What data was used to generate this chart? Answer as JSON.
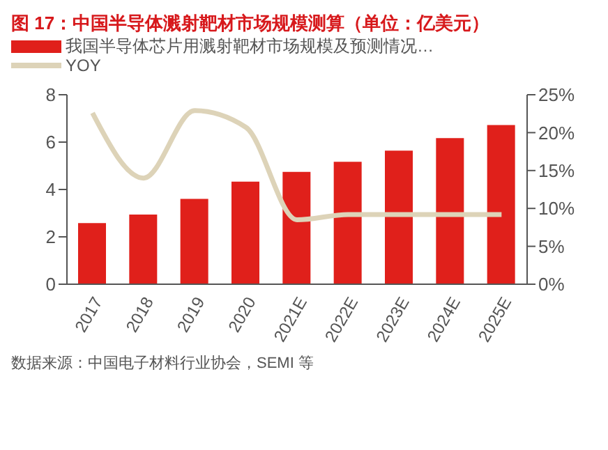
{
  "chart_data": {
    "type": "bar",
    "title": "图 17：中国半导体溅射靶材市场规模测算（单位：亿美元）",
    "categories": [
      "2017",
      "2018",
      "2019",
      "2020",
      "2021E",
      "2022E",
      "2023E",
      "2024E",
      "2025E"
    ],
    "series": [
      {
        "name": "我国半导体芯片用溅射靶材市场规模及预测情况…",
        "color": "#e0201b",
        "values": [
          2.58,
          2.94,
          3.6,
          4.33,
          4.74,
          5.17,
          5.64,
          6.17,
          6.72
        ]
      },
      {
        "name": "YOY",
        "type": "line",
        "axis": "y2",
        "color": "#ddd3b8",
        "values": [
          22.6,
          14.0,
          22.9,
          20.7,
          8.5,
          9.2,
          9.2,
          9.2,
          9.2
        ]
      }
    ],
    "ylim": [
      0,
      8
    ],
    "yticks": [
      0,
      2,
      4,
      6,
      8
    ],
    "y2lim": [
      0,
      25
    ],
    "y2ticks": [
      {
        "value": 0,
        "label": "0%"
      },
      {
        "value": 5,
        "label": "5%"
      },
      {
        "value": 10,
        "label": "10%"
      },
      {
        "value": 15,
        "label": "15%"
      },
      {
        "value": 20,
        "label": "20%"
      },
      {
        "value": 25,
        "label": "25%"
      }
    ],
    "grid": false,
    "legend": "top",
    "marker": "none",
    "line_style": "solid",
    "annotations": [
      "数据来源：中国电子材料行业协会，SEMI 等"
    ]
  }
}
